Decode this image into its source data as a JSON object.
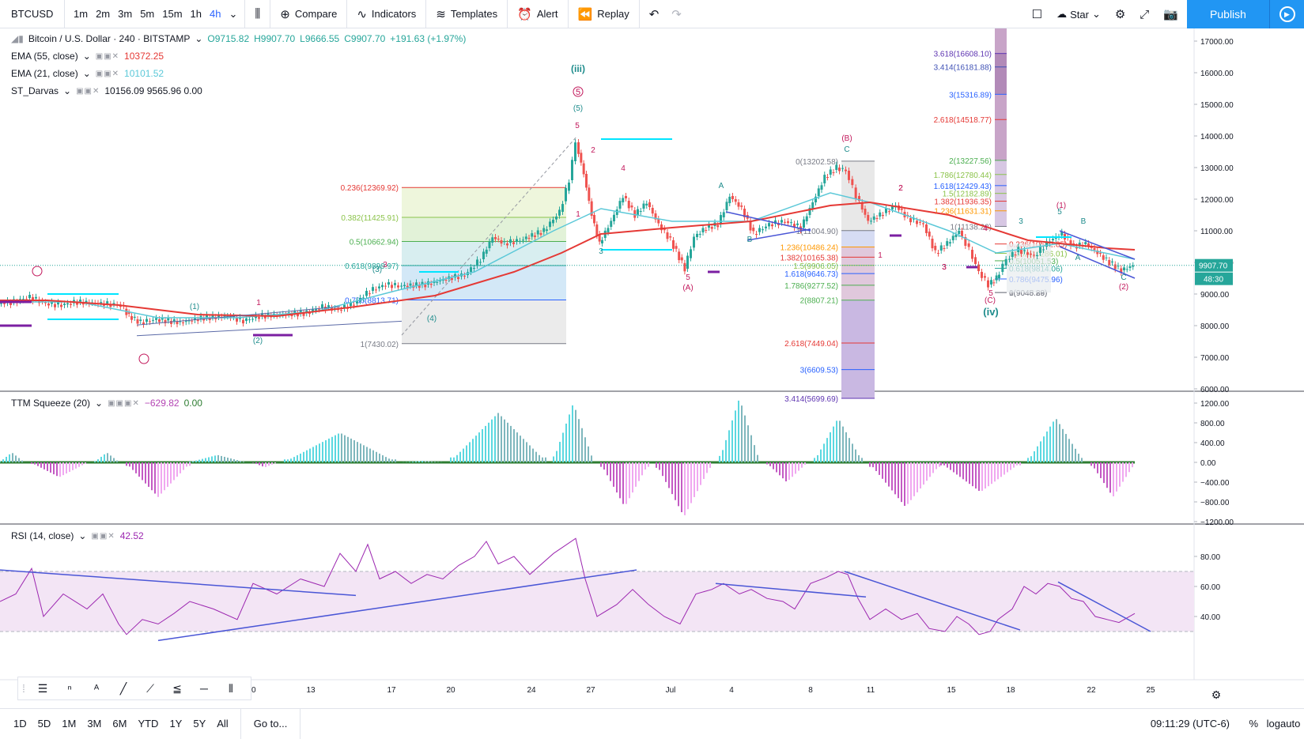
{
  "toolbar": {
    "symbol": "BTCUSD",
    "timeframes": [
      "1m",
      "2m",
      "3m",
      "5m",
      "15m",
      "1h",
      "4h"
    ],
    "active_timeframe": "4h",
    "compare": "Compare",
    "indicators": "Indicators",
    "templates": "Templates",
    "alert": "Alert",
    "replay": "Replay",
    "star": "Star",
    "publish": "Publish"
  },
  "main_legend": {
    "title": "Bitcoin / U.S. Dollar · 240 · BITSTAMP",
    "o": "O9715.82",
    "h": "H9907.70",
    "l": "L9666.55",
    "c": "C9907.70",
    "chg": "+191.63 (+1.97%)"
  },
  "indicators": [
    {
      "name": "EMA (55, close)",
      "value": "10372.25",
      "color": "#e53935"
    },
    {
      "name": "EMA (21, close)",
      "value": "10101.52",
      "color": "#5bc8d8"
    },
    {
      "name": "ST_Darvas",
      "value": "10156.09  9565.96  0.00",
      "color": "#131722"
    }
  ],
  "ttm": {
    "name": "TTM Squeeze (20)",
    "v1": "−629.82",
    "v2": "0.00"
  },
  "rsi": {
    "name": "RSI (14, close)",
    "value": "42.52"
  },
  "price_axis": {
    "labels": [
      "17000.00",
      "16000.00",
      "15000.00",
      "14000.00",
      "13000.00",
      "12000.00",
      "11000.00",
      "10000.00",
      "9000.00",
      "8000.00",
      "7000.00",
      "6000.00"
    ],
    "current": "9907.70",
    "countdown": "48:30"
  },
  "ttm_axis": [
    "1200.00",
    "800.00",
    "400.00",
    "0.00",
    "−400.00",
    "−800.00",
    "−1200.00"
  ],
  "rsi_axis": [
    "80.00",
    "60.00",
    "40.00"
  ],
  "time_axis": [
    "10",
    "13",
    "17",
    "20",
    "24",
    "27",
    "Jul",
    "4",
    "8",
    "11",
    "15",
    "18",
    "22",
    "25"
  ],
  "fib_left": [
    "0.236(12369.92)",
    "0.382(11425.91)",
    "0.5(10662.94)",
    "0.618(9899.97)",
    "0.786(8813.71)",
    "1(7430.02)"
  ],
  "fib_mid": [
    "0(13202.58)",
    "1(11004.90)",
    "1.236(10486.24)",
    "1.382(10165.38)",
    "1.5(9906.05)",
    "1.618(9646.73)",
    "1.786(9277.52)",
    "2(8807.21)",
    "2.618(7449.04)",
    "3(6609.53)",
    "3.414(5699.69)"
  ],
  "fib_right": [
    "3.618(16608.10)",
    "3.414(16181.88)",
    "3(15316.89)",
    "2.618(14518.77)",
    "2(13227.56)",
    "1.786(12780.44)",
    "1.618(12429.43)",
    "1.5(12182.89)",
    "1.382(11936.35)",
    "1.236(11631.31)",
    "1(11138.22)",
    "0.236(10582.85)",
    "0.382(10286.01)",
    "0.5(10051.53)",
    "0.618(9814.06)",
    "0.786(9475.96)",
    "0(9048.89)",
    "1(9045.28)"
  ],
  "waves": [
    "(iii)",
    "5",
    "(5)",
    "5",
    "2",
    "4",
    "1",
    "3",
    "3",
    "(3)",
    "(4)",
    "(1)",
    "(2)",
    "1",
    "2",
    "3",
    "4",
    "(B)",
    "C",
    "A",
    "B",
    "5",
    "(A)",
    "1",
    "2",
    "3",
    "4",
    "5",
    "(C)",
    "(iv)",
    "3",
    "(1)",
    "5",
    "B",
    "A",
    "C",
    "(2)"
  ],
  "bottom": {
    "ranges": [
      "1D",
      "5D",
      "1M",
      "3M",
      "6M",
      "YTD",
      "1Y",
      "5Y",
      "All"
    ],
    "goto": "Go to...",
    "clock": "09:11:29 (UTC-6)",
    "pct": "%",
    "log": "log",
    "auto": "auto"
  }
}
